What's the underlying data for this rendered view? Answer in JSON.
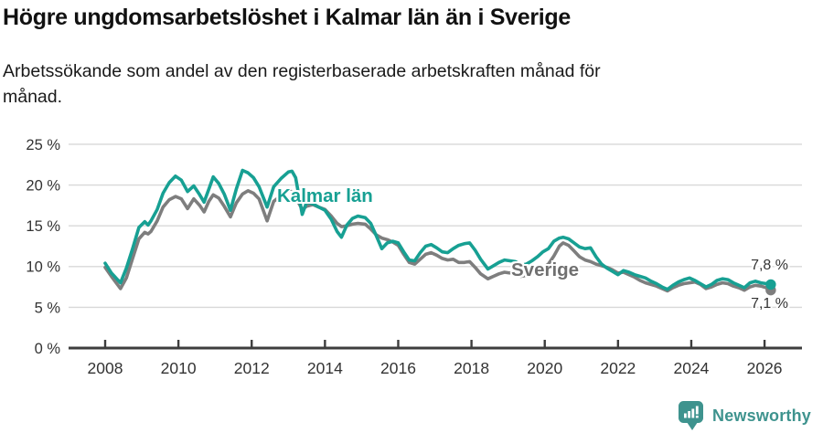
{
  "header": {
    "title": "Högre ungdomsarbetslöshet i Kalmar län än i Sverige",
    "subtitle_line1": "Arbetssökande som andel av den registerbaserade arbetskraften månad för",
    "subtitle_line2": "månad."
  },
  "colors": {
    "kalmar": "#17a093",
    "sverige": "#7e7e7e",
    "sverige_label": "#707070",
    "gridline": "#d8d8d8",
    "axis": "#3d3d3d",
    "tick_text": "#333333",
    "logo": "#3e938e"
  },
  "footer": {
    "brand": "Newsworthy",
    "logo_icon": "speech-bubble-bar-chart-icon"
  },
  "chart_data": {
    "type": "line",
    "title": "Högre ungdomsarbetslöshet i Kalmar län än i Sverige",
    "subtitle": "Arbetssökande som andel av den registerbaserade arbetskraften månad för månad.",
    "xlabel": "",
    "ylabel": "",
    "ylim": [
      0,
      25
    ],
    "xlim": [
      2007,
      2027.1
    ],
    "grid": "horizontal",
    "legend_position": "inline-labels",
    "x_ticks": [
      2008,
      2010,
      2012,
      2014,
      2016,
      2018,
      2020,
      2022,
      2024,
      2026
    ],
    "y_ticks": [
      {
        "v": 0,
        "label": "0 %"
      },
      {
        "v": 5,
        "label": "5 %"
      },
      {
        "v": 10,
        "label": "10 %"
      },
      {
        "v": 15,
        "label": "15 %"
      },
      {
        "v": 20,
        "label": "20 %"
      },
      {
        "v": 25,
        "label": "25 %"
      }
    ],
    "series": [
      {
        "name": "Sverige",
        "color": "#7e7e7e",
        "end_label": "7,1 %",
        "end_value": 7.1,
        "points": [
          [
            2008.0,
            9.9
          ],
          [
            2008.17,
            8.8
          ],
          [
            2008.42,
            7.3
          ],
          [
            2008.58,
            8.6
          ],
          [
            2008.75,
            11.0
          ],
          [
            2008.92,
            13.4
          ],
          [
            2009.08,
            14.2
          ],
          [
            2009.17,
            14.0
          ],
          [
            2009.25,
            14.3
          ],
          [
            2009.42,
            15.6
          ],
          [
            2009.58,
            17.3
          ],
          [
            2009.75,
            18.2
          ],
          [
            2009.92,
            18.6
          ],
          [
            2010.08,
            18.3
          ],
          [
            2010.25,
            17.1
          ],
          [
            2010.42,
            18.3
          ],
          [
            2010.58,
            17.5
          ],
          [
            2010.7,
            16.7
          ],
          [
            2010.83,
            18.0
          ],
          [
            2010.95,
            18.8
          ],
          [
            2011.1,
            18.4
          ],
          [
            2011.25,
            17.4
          ],
          [
            2011.42,
            16.1
          ],
          [
            2011.58,
            17.8
          ],
          [
            2011.75,
            18.9
          ],
          [
            2011.9,
            19.3
          ],
          [
            2012.05,
            19.0
          ],
          [
            2012.2,
            18.3
          ],
          [
            2012.42,
            15.6
          ],
          [
            2012.6,
            18.0
          ],
          [
            2012.8,
            18.7
          ],
          [
            2013.0,
            19.3
          ],
          [
            2013.1,
            19.2
          ],
          [
            2013.2,
            18.5
          ],
          [
            2013.38,
            17.0
          ],
          [
            2013.5,
            17.4
          ],
          [
            2013.67,
            17.6
          ],
          [
            2013.83,
            17.3
          ],
          [
            2014.0,
            17.0
          ],
          [
            2014.17,
            16.2
          ],
          [
            2014.33,
            15.3
          ],
          [
            2014.45,
            14.9
          ],
          [
            2014.6,
            15.0
          ],
          [
            2014.75,
            15.2
          ],
          [
            2014.9,
            15.3
          ],
          [
            2015.1,
            15.2
          ],
          [
            2015.25,
            14.6
          ],
          [
            2015.4,
            13.9
          ],
          [
            2015.55,
            13.5
          ],
          [
            2015.7,
            13.3
          ],
          [
            2015.85,
            13.0
          ],
          [
            2016.0,
            12.6
          ],
          [
            2016.15,
            11.5
          ],
          [
            2016.3,
            10.5
          ],
          [
            2016.45,
            10.3
          ],
          [
            2016.6,
            10.9
          ],
          [
            2016.75,
            11.5
          ],
          [
            2016.9,
            11.7
          ],
          [
            2017.05,
            11.4
          ],
          [
            2017.2,
            11.0
          ],
          [
            2017.35,
            10.8
          ],
          [
            2017.5,
            10.9
          ],
          [
            2017.65,
            10.5
          ],
          [
            2017.8,
            10.5
          ],
          [
            2017.95,
            10.6
          ],
          [
            2018.1,
            9.9
          ],
          [
            2018.25,
            9.1
          ],
          [
            2018.45,
            8.5
          ],
          [
            2018.6,
            8.8
          ],
          [
            2018.75,
            9.1
          ],
          [
            2018.9,
            9.3
          ],
          [
            2019.05,
            9.2
          ],
          [
            2019.2,
            9.0
          ],
          [
            2019.35,
            8.8
          ],
          [
            2019.5,
            8.9
          ],
          [
            2019.65,
            9.1
          ],
          [
            2019.8,
            9.4
          ],
          [
            2019.95,
            9.8
          ],
          [
            2020.1,
            10.3
          ],
          [
            2020.25,
            11.3
          ],
          [
            2020.4,
            12.5
          ],
          [
            2020.5,
            12.9
          ],
          [
            2020.65,
            12.6
          ],
          [
            2020.8,
            11.9
          ],
          [
            2020.95,
            11.2
          ],
          [
            2021.1,
            10.8
          ],
          [
            2021.25,
            10.6
          ],
          [
            2021.4,
            10.3
          ],
          [
            2021.55,
            10.1
          ],
          [
            2021.7,
            9.9
          ],
          [
            2021.85,
            9.6
          ],
          [
            2022.0,
            9.2
          ],
          [
            2022.15,
            9.3
          ],
          [
            2022.3,
            9.0
          ],
          [
            2022.45,
            8.7
          ],
          [
            2022.6,
            8.3
          ],
          [
            2022.75,
            8.0
          ],
          [
            2022.9,
            7.8
          ],
          [
            2023.05,
            7.6
          ],
          [
            2023.2,
            7.3
          ],
          [
            2023.35,
            7.0
          ],
          [
            2023.5,
            7.4
          ],
          [
            2023.65,
            7.7
          ],
          [
            2023.8,
            7.9
          ],
          [
            2023.95,
            8.0
          ],
          [
            2024.1,
            8.1
          ],
          [
            2024.25,
            7.8
          ],
          [
            2024.4,
            7.3
          ],
          [
            2024.55,
            7.5
          ],
          [
            2024.7,
            7.8
          ],
          [
            2024.85,
            8.0
          ],
          [
            2025.0,
            7.9
          ],
          [
            2025.15,
            7.6
          ],
          [
            2025.3,
            7.4
          ],
          [
            2025.45,
            7.1
          ],
          [
            2025.6,
            7.5
          ],
          [
            2025.75,
            7.7
          ],
          [
            2025.9,
            7.6
          ],
          [
            2026.05,
            7.4
          ],
          [
            2026.17,
            7.1
          ]
        ]
      },
      {
        "name": "Kalmar län",
        "color": "#17a093",
        "end_label": "7,8 %",
        "end_value": 7.8,
        "points": [
          [
            2008.0,
            10.4
          ],
          [
            2008.17,
            9.2
          ],
          [
            2008.42,
            8.0
          ],
          [
            2008.58,
            9.8
          ],
          [
            2008.75,
            12.2
          ],
          [
            2008.92,
            14.8
          ],
          [
            2009.08,
            15.5
          ],
          [
            2009.17,
            15.1
          ],
          [
            2009.25,
            15.6
          ],
          [
            2009.42,
            17.0
          ],
          [
            2009.58,
            19.0
          ],
          [
            2009.75,
            20.3
          ],
          [
            2009.92,
            21.1
          ],
          [
            2010.08,
            20.6
          ],
          [
            2010.25,
            19.2
          ],
          [
            2010.42,
            19.9
          ],
          [
            2010.58,
            18.8
          ],
          [
            2010.7,
            17.9
          ],
          [
            2010.83,
            19.5
          ],
          [
            2010.95,
            21.0
          ],
          [
            2011.1,
            20.2
          ],
          [
            2011.25,
            18.9
          ],
          [
            2011.42,
            16.9
          ],
          [
            2011.58,
            19.5
          ],
          [
            2011.75,
            21.8
          ],
          [
            2011.9,
            21.5
          ],
          [
            2012.05,
            20.9
          ],
          [
            2012.2,
            19.8
          ],
          [
            2012.42,
            17.3
          ],
          [
            2012.6,
            19.8
          ],
          [
            2012.8,
            20.8
          ],
          [
            2013.0,
            21.6
          ],
          [
            2013.1,
            21.7
          ],
          [
            2013.2,
            20.9
          ],
          [
            2013.38,
            16.4
          ],
          [
            2013.5,
            17.9
          ],
          [
            2013.67,
            17.7
          ],
          [
            2013.83,
            17.3
          ],
          [
            2014.0,
            16.9
          ],
          [
            2014.17,
            15.8
          ],
          [
            2014.33,
            14.3
          ],
          [
            2014.45,
            13.6
          ],
          [
            2014.6,
            15.1
          ],
          [
            2014.75,
            15.9
          ],
          [
            2014.9,
            16.2
          ],
          [
            2015.1,
            16.0
          ],
          [
            2015.25,
            15.3
          ],
          [
            2015.4,
            13.8
          ],
          [
            2015.55,
            12.2
          ],
          [
            2015.7,
            12.9
          ],
          [
            2015.85,
            13.1
          ],
          [
            2016.0,
            12.9
          ],
          [
            2016.15,
            11.8
          ],
          [
            2016.3,
            10.8
          ],
          [
            2016.45,
            10.7
          ],
          [
            2016.6,
            11.7
          ],
          [
            2016.75,
            12.5
          ],
          [
            2016.9,
            12.7
          ],
          [
            2017.05,
            12.3
          ],
          [
            2017.2,
            11.8
          ],
          [
            2017.35,
            11.7
          ],
          [
            2017.5,
            12.2
          ],
          [
            2017.65,
            12.6
          ],
          [
            2017.8,
            12.8
          ],
          [
            2017.95,
            12.9
          ],
          [
            2018.1,
            12.0
          ],
          [
            2018.25,
            10.9
          ],
          [
            2018.45,
            9.7
          ],
          [
            2018.6,
            10.1
          ],
          [
            2018.75,
            10.5
          ],
          [
            2018.9,
            10.8
          ],
          [
            2019.05,
            10.7
          ],
          [
            2019.2,
            10.6
          ],
          [
            2019.35,
            10.2
          ],
          [
            2019.5,
            10.3
          ],
          [
            2019.65,
            10.7
          ],
          [
            2019.8,
            11.2
          ],
          [
            2019.95,
            11.8
          ],
          [
            2020.1,
            12.2
          ],
          [
            2020.25,
            13.1
          ],
          [
            2020.4,
            13.5
          ],
          [
            2020.5,
            13.6
          ],
          [
            2020.65,
            13.4
          ],
          [
            2020.8,
            12.9
          ],
          [
            2020.95,
            12.4
          ],
          [
            2021.1,
            12.2
          ],
          [
            2021.25,
            12.3
          ],
          [
            2021.4,
            11.2
          ],
          [
            2021.55,
            10.3
          ],
          [
            2021.7,
            9.8
          ],
          [
            2021.85,
            9.4
          ],
          [
            2022.0,
            9.0
          ],
          [
            2022.15,
            9.5
          ],
          [
            2022.3,
            9.3
          ],
          [
            2022.45,
            9.0
          ],
          [
            2022.6,
            8.8
          ],
          [
            2022.75,
            8.6
          ],
          [
            2022.9,
            8.2
          ],
          [
            2023.05,
            7.9
          ],
          [
            2023.2,
            7.5
          ],
          [
            2023.35,
            7.2
          ],
          [
            2023.5,
            7.7
          ],
          [
            2023.65,
            8.1
          ],
          [
            2023.8,
            8.4
          ],
          [
            2023.95,
            8.6
          ],
          [
            2024.1,
            8.3
          ],
          [
            2024.25,
            7.9
          ],
          [
            2024.4,
            7.5
          ],
          [
            2024.55,
            7.8
          ],
          [
            2024.7,
            8.3
          ],
          [
            2024.85,
            8.5
          ],
          [
            2025.0,
            8.4
          ],
          [
            2025.15,
            8.0
          ],
          [
            2025.3,
            7.7
          ],
          [
            2025.45,
            7.4
          ],
          [
            2025.6,
            8.0
          ],
          [
            2025.75,
            8.2
          ],
          [
            2025.9,
            8.0
          ],
          [
            2026.05,
            7.9
          ],
          [
            2026.17,
            7.8
          ]
        ]
      }
    ]
  }
}
